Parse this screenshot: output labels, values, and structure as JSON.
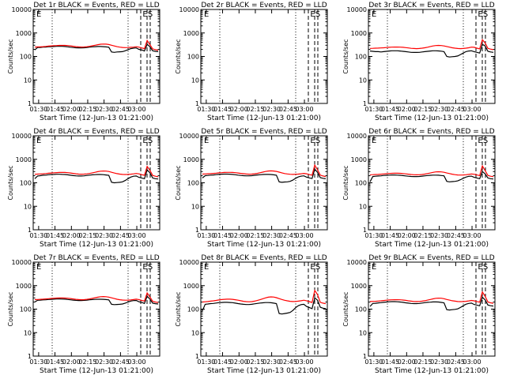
{
  "figure": {
    "background": "#ffffff",
    "axis_color": "#000000",
    "events_color": "#000000",
    "lld_color": "#ff0000",
    "xlabel": "Start Time (12-Jun-13 01:21:00)",
    "ylabel": "Counts/sec",
    "xticks": [
      "01:30",
      "01:45",
      "02:00",
      "02:15",
      "02:30",
      "02:45",
      "03:00"
    ],
    "yticks": [
      "1",
      "10",
      "100",
      "1000",
      "10000"
    ],
    "markers": [
      "E",
      "S"
    ]
  },
  "chart_data": [
    {
      "type": "line",
      "title": "Det 1r BLACK = Events, RED = LLD",
      "events": [
        190,
        240,
        240,
        250,
        250,
        260,
        260,
        265,
        270,
        270,
        270,
        265,
        258,
        248,
        240,
        235,
        232,
        232,
        235,
        242,
        250,
        258,
        262,
        265,
        265,
        262,
        255,
        248,
        155,
        150,
        155,
        158,
        160,
        175,
        195,
        215,
        225,
        230,
        200,
        190,
        170,
        330,
        260,
        175,
        165,
        160
      ],
      "lld": [
        250,
        255,
        258,
        262,
        268,
        275,
        282,
        288,
        292,
        295,
        296,
        295,
        290,
        282,
        272,
        262,
        255,
        252,
        254,
        260,
        270,
        285,
        300,
        318,
        332,
        338,
        335,
        322,
        300,
        280,
        262,
        250,
        242,
        238,
        240,
        245,
        250,
        260,
        250,
        230,
        215,
        480,
        320,
        210,
        195,
        185
      ]
    },
    {
      "type": "line",
      "title": "Det 2r BLACK = Events, RED = LLD",
      "events": [],
      "lld": []
    },
    {
      "type": "line",
      "title": "Det 3r BLACK = Events, RED = LLD",
      "events": [
        170,
        165,
        160,
        160,
        155,
        160,
        165,
        170,
        175,
        175,
        175,
        170,
        165,
        160,
        155,
        150,
        148,
        148,
        150,
        155,
        160,
        165,
        170,
        175,
        175,
        172,
        168,
        160,
        100,
        95,
        98,
        100,
        105,
        120,
        140,
        160,
        170,
        175,
        160,
        150,
        140,
        330,
        280,
        165,
        155,
        150
      ],
      "lld": [
        220,
        222,
        225,
        228,
        230,
        235,
        240,
        245,
        250,
        252,
        252,
        250,
        245,
        238,
        230,
        222,
        218,
        215,
        218,
        225,
        235,
        248,
        265,
        280,
        290,
        295,
        292,
        280,
        265,
        250,
        235,
        225,
        218,
        215,
        218,
        225,
        235,
        250,
        245,
        225,
        210,
        520,
        380,
        220,
        205,
        195
      ]
    },
    {
      "type": "line",
      "title": "Det 4r BLACK = Events, RED = LLD",
      "events": [
        150,
        195,
        200,
        210,
        212,
        220,
        225,
        228,
        230,
        230,
        228,
        225,
        218,
        210,
        202,
        198,
        195,
        195,
        198,
        205,
        212,
        218,
        222,
        225,
        225,
        222,
        215,
        208,
        105,
        100,
        102,
        105,
        110,
        125,
        150,
        175,
        190,
        195,
        170,
        160,
        150,
        350,
        270,
        160,
        150,
        145
      ],
      "lld": [
        230,
        235,
        238,
        242,
        248,
        255,
        262,
        268,
        272,
        275,
        276,
        275,
        270,
        262,
        252,
        242,
        235,
        232,
        234,
        240,
        250,
        265,
        280,
        298,
        312,
        318,
        315,
        302,
        280,
        262,
        245,
        235,
        228,
        225,
        228,
        232,
        240,
        250,
        240,
        222,
        208,
        500,
        340,
        205,
        190,
        180
      ]
    },
    {
      "type": "line",
      "title": "Det 5r BLACK = Events, RED = LLD",
      "events": [
        160,
        200,
        205,
        212,
        215,
        222,
        228,
        232,
        235,
        235,
        232,
        228,
        220,
        212,
        205,
        200,
        197,
        197,
        200,
        208,
        215,
        220,
        225,
        228,
        228,
        225,
        218,
        210,
        110,
        105,
        108,
        110,
        115,
        130,
        155,
        178,
        192,
        198,
        175,
        162,
        152,
        380,
        280,
        165,
        155,
        148
      ],
      "lld": [
        235,
        238,
        242,
        246,
        252,
        258,
        265,
        270,
        275,
        278,
        278,
        276,
        270,
        262,
        252,
        243,
        236,
        233,
        235,
        242,
        252,
        268,
        285,
        302,
        316,
        322,
        318,
        305,
        284,
        265,
        248,
        238,
        230,
        228,
        230,
        235,
        242,
        252,
        242,
        224,
        210,
        560,
        360,
        212,
        195,
        185
      ]
    },
    {
      "type": "line",
      "title": "Det 6r BLACK = Events, RED = LLD",
      "events": [
        110,
        185,
        190,
        195,
        198,
        205,
        208,
        212,
        215,
        215,
        212,
        208,
        202,
        196,
        190,
        186,
        184,
        184,
        186,
        192,
        198,
        204,
        208,
        212,
        212,
        210,
        204,
        198,
        115,
        110,
        112,
        115,
        120,
        135,
        155,
        175,
        188,
        192,
        170,
        160,
        150,
        300,
        240,
        160,
        150,
        145
      ],
      "lld": [
        220,
        222,
        225,
        228,
        232,
        238,
        244,
        250,
        254,
        256,
        256,
        254,
        248,
        240,
        232,
        225,
        220,
        218,
        220,
        226,
        235,
        248,
        262,
        278,
        290,
        295,
        292,
        280,
        262,
        248,
        232,
        222,
        216,
        214,
        216,
        220,
        228,
        238,
        230,
        215,
        202,
        520,
        330,
        205,
        190,
        182
      ]
    },
    {
      "type": "line",
      "title": "Det 7r BLACK = Events, RED = LLD",
      "events": [
        200,
        238,
        240,
        248,
        250,
        258,
        262,
        266,
        270,
        270,
        268,
        265,
        258,
        250,
        242,
        236,
        233,
        233,
        236,
        242,
        250,
        256,
        260,
        264,
        264,
        262,
        255,
        248,
        160,
        155,
        158,
        160,
        165,
        180,
        200,
        220,
        230,
        235,
        205,
        195,
        175,
        350,
        270,
        180,
        170,
        165
      ],
      "lld": [
        255,
        258,
        262,
        266,
        272,
        278,
        285,
        292,
        296,
        298,
        298,
        296,
        290,
        282,
        272,
        262,
        255,
        252,
        254,
        262,
        272,
        288,
        304,
        322,
        336,
        342,
        338,
        325,
        302,
        282,
        264,
        252,
        244,
        240,
        242,
        248,
        255,
        265,
        255,
        235,
        220,
        490,
        330,
        215,
        200,
        190
      ]
    },
    {
      "type": "line",
      "title": "Det 8r BLACK = Events, RED = LLD",
      "events": [
        85,
        160,
        165,
        172,
        175,
        182,
        188,
        192,
        195,
        195,
        192,
        188,
        180,
        172,
        165,
        160,
        157,
        157,
        160,
        168,
        175,
        182,
        186,
        190,
        190,
        187,
        180,
        172,
        65,
        62,
        65,
        68,
        72,
        88,
        115,
        140,
        155,
        160,
        130,
        118,
        105,
        300,
        240,
        120,
        110,
        105
      ],
      "lld": [
        200,
        205,
        210,
        218,
        225,
        235,
        245,
        255,
        262,
        266,
        266,
        262,
        252,
        240,
        228,
        216,
        208,
        205,
        208,
        218,
        232,
        252,
        275,
        300,
        322,
        332,
        326,
        306,
        280,
        258,
        238,
        225,
        215,
        210,
        212,
        218,
        228,
        240,
        228,
        208,
        192,
        620,
        420,
        195,
        180,
        170
      ]
    },
    {
      "type": "line",
      "title": "Det 9r BLACK = Events, RED = LLD",
      "events": [
        130,
        175,
        178,
        185,
        188,
        195,
        200,
        205,
        208,
        208,
        205,
        200,
        194,
        186,
        180,
        175,
        172,
        172,
        175,
        182,
        188,
        194,
        198,
        202,
        202,
        200,
        193,
        186,
        95,
        92,
        95,
        98,
        102,
        118,
        140,
        162,
        175,
        180,
        158,
        148,
        138,
        320,
        250,
        150,
        140,
        135
      ],
      "lld": [
        210,
        213,
        216,
        220,
        226,
        232,
        240,
        246,
        250,
        252,
        252,
        250,
        244,
        236,
        226,
        218,
        212,
        210,
        212,
        218,
        228,
        242,
        258,
        274,
        288,
        294,
        290,
        277,
        258,
        242,
        228,
        218,
        211,
        209,
        211,
        216,
        224,
        234,
        226,
        210,
        198,
        540,
        350,
        200,
        186,
        178
      ]
    }
  ]
}
